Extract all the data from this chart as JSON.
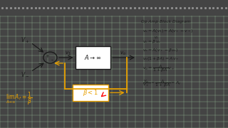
{
  "bg_color": "#c8e8c8",
  "grid_color": "#a0c8a0",
  "toolbar_color": "#c8c8c8",
  "orange_color": "#e8a000",
  "dark_color": "#1a1a1a",
  "title": "Op Amp Block Diagram"
}
